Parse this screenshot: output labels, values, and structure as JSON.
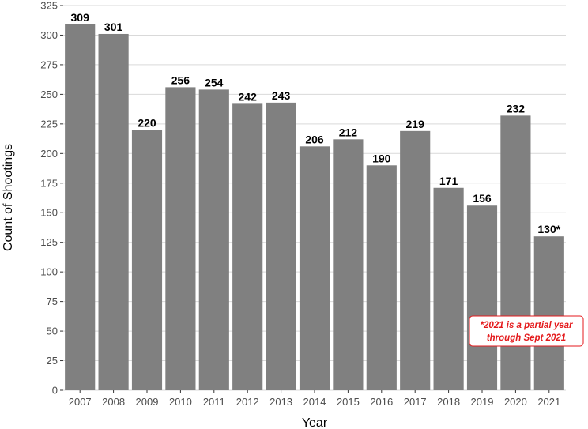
{
  "chart_data": {
    "type": "bar",
    "title": "",
    "xlabel": "Year",
    "ylabel": "Count of Shootings",
    "categories": [
      "2007",
      "2008",
      "2009",
      "2010",
      "2011",
      "2012",
      "2013",
      "2014",
      "2015",
      "2016",
      "2017",
      "2018",
      "2019",
      "2020",
      "2021"
    ],
    "values": [
      309,
      301,
      220,
      256,
      254,
      242,
      243,
      206,
      212,
      190,
      219,
      171,
      156,
      232,
      130
    ],
    "data_labels": [
      "309",
      "301",
      "220",
      "256",
      "254",
      "242",
      "243",
      "206",
      "212",
      "190",
      "219",
      "171",
      "156",
      "232",
      "130*"
    ],
    "ylim": [
      0,
      325
    ],
    "yticks": [
      0,
      25,
      50,
      75,
      100,
      125,
      150,
      175,
      200,
      225,
      250,
      275,
      300,
      325
    ],
    "grid": true,
    "colors": {
      "bar": "#808080",
      "grid": "#d9d9d9",
      "annotation": "#e41a1c"
    },
    "annotation": {
      "lines": [
        "*2021 is a partial year",
        "through Sept 2021"
      ]
    }
  }
}
